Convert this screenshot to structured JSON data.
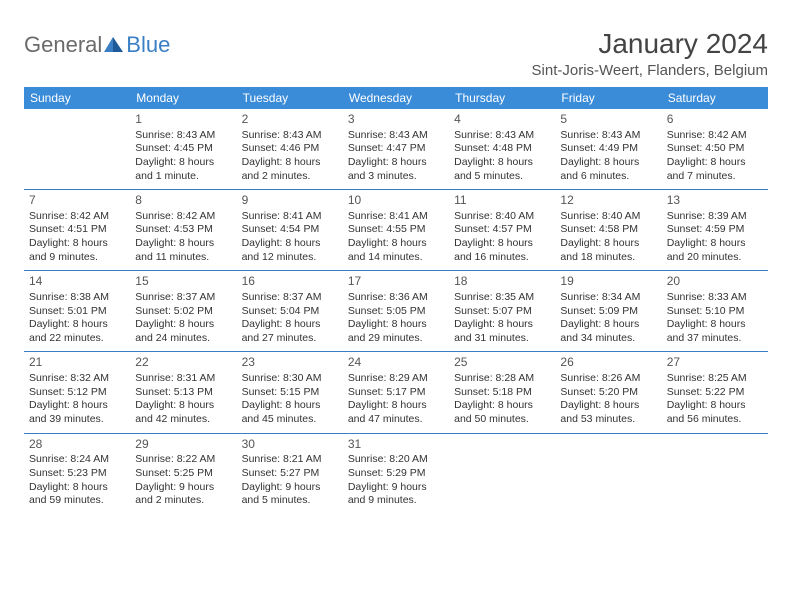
{
  "logo": {
    "text1": "General",
    "text2": "Blue"
  },
  "title": "January 2024",
  "location": "Sint-Joris-Weert, Flanders, Belgium",
  "colors": {
    "header_bg": "#3a8bd8",
    "header_text": "#ffffff",
    "week_border": "#3a7fc4",
    "body_text": "#333333",
    "logo_gray": "#6b6b6b",
    "logo_blue": "#3a7fc4",
    "page_bg": "#ffffff"
  },
  "weekdays": [
    "Sunday",
    "Monday",
    "Tuesday",
    "Wednesday",
    "Thursday",
    "Friday",
    "Saturday"
  ],
  "weeks": [
    [
      {
        "num": "",
        "lines": [
          "",
          "",
          "",
          ""
        ]
      },
      {
        "num": "1",
        "lines": [
          "Sunrise: 8:43 AM",
          "Sunset: 4:45 PM",
          "Daylight: 8 hours",
          "and 1 minute."
        ]
      },
      {
        "num": "2",
        "lines": [
          "Sunrise: 8:43 AM",
          "Sunset: 4:46 PM",
          "Daylight: 8 hours",
          "and 2 minutes."
        ]
      },
      {
        "num": "3",
        "lines": [
          "Sunrise: 8:43 AM",
          "Sunset: 4:47 PM",
          "Daylight: 8 hours",
          "and 3 minutes."
        ]
      },
      {
        "num": "4",
        "lines": [
          "Sunrise: 8:43 AM",
          "Sunset: 4:48 PM",
          "Daylight: 8 hours",
          "and 5 minutes."
        ]
      },
      {
        "num": "5",
        "lines": [
          "Sunrise: 8:43 AM",
          "Sunset: 4:49 PM",
          "Daylight: 8 hours",
          "and 6 minutes."
        ]
      },
      {
        "num": "6",
        "lines": [
          "Sunrise: 8:42 AM",
          "Sunset: 4:50 PM",
          "Daylight: 8 hours",
          "and 7 minutes."
        ]
      }
    ],
    [
      {
        "num": "7",
        "lines": [
          "Sunrise: 8:42 AM",
          "Sunset: 4:51 PM",
          "Daylight: 8 hours",
          "and 9 minutes."
        ]
      },
      {
        "num": "8",
        "lines": [
          "Sunrise: 8:42 AM",
          "Sunset: 4:53 PM",
          "Daylight: 8 hours",
          "and 11 minutes."
        ]
      },
      {
        "num": "9",
        "lines": [
          "Sunrise: 8:41 AM",
          "Sunset: 4:54 PM",
          "Daylight: 8 hours",
          "and 12 minutes."
        ]
      },
      {
        "num": "10",
        "lines": [
          "Sunrise: 8:41 AM",
          "Sunset: 4:55 PM",
          "Daylight: 8 hours",
          "and 14 minutes."
        ]
      },
      {
        "num": "11",
        "lines": [
          "Sunrise: 8:40 AM",
          "Sunset: 4:57 PM",
          "Daylight: 8 hours",
          "and 16 minutes."
        ]
      },
      {
        "num": "12",
        "lines": [
          "Sunrise: 8:40 AM",
          "Sunset: 4:58 PM",
          "Daylight: 8 hours",
          "and 18 minutes."
        ]
      },
      {
        "num": "13",
        "lines": [
          "Sunrise: 8:39 AM",
          "Sunset: 4:59 PM",
          "Daylight: 8 hours",
          "and 20 minutes."
        ]
      }
    ],
    [
      {
        "num": "14",
        "lines": [
          "Sunrise: 8:38 AM",
          "Sunset: 5:01 PM",
          "Daylight: 8 hours",
          "and 22 minutes."
        ]
      },
      {
        "num": "15",
        "lines": [
          "Sunrise: 8:37 AM",
          "Sunset: 5:02 PM",
          "Daylight: 8 hours",
          "and 24 minutes."
        ]
      },
      {
        "num": "16",
        "lines": [
          "Sunrise: 8:37 AM",
          "Sunset: 5:04 PM",
          "Daylight: 8 hours",
          "and 27 minutes."
        ]
      },
      {
        "num": "17",
        "lines": [
          "Sunrise: 8:36 AM",
          "Sunset: 5:05 PM",
          "Daylight: 8 hours",
          "and 29 minutes."
        ]
      },
      {
        "num": "18",
        "lines": [
          "Sunrise: 8:35 AM",
          "Sunset: 5:07 PM",
          "Daylight: 8 hours",
          "and 31 minutes."
        ]
      },
      {
        "num": "19",
        "lines": [
          "Sunrise: 8:34 AM",
          "Sunset: 5:09 PM",
          "Daylight: 8 hours",
          "and 34 minutes."
        ]
      },
      {
        "num": "20",
        "lines": [
          "Sunrise: 8:33 AM",
          "Sunset: 5:10 PM",
          "Daylight: 8 hours",
          "and 37 minutes."
        ]
      }
    ],
    [
      {
        "num": "21",
        "lines": [
          "Sunrise: 8:32 AM",
          "Sunset: 5:12 PM",
          "Daylight: 8 hours",
          "and 39 minutes."
        ]
      },
      {
        "num": "22",
        "lines": [
          "Sunrise: 8:31 AM",
          "Sunset: 5:13 PM",
          "Daylight: 8 hours",
          "and 42 minutes."
        ]
      },
      {
        "num": "23",
        "lines": [
          "Sunrise: 8:30 AM",
          "Sunset: 5:15 PM",
          "Daylight: 8 hours",
          "and 45 minutes."
        ]
      },
      {
        "num": "24",
        "lines": [
          "Sunrise: 8:29 AM",
          "Sunset: 5:17 PM",
          "Daylight: 8 hours",
          "and 47 minutes."
        ]
      },
      {
        "num": "25",
        "lines": [
          "Sunrise: 8:28 AM",
          "Sunset: 5:18 PM",
          "Daylight: 8 hours",
          "and 50 minutes."
        ]
      },
      {
        "num": "26",
        "lines": [
          "Sunrise: 8:26 AM",
          "Sunset: 5:20 PM",
          "Daylight: 8 hours",
          "and 53 minutes."
        ]
      },
      {
        "num": "27",
        "lines": [
          "Sunrise: 8:25 AM",
          "Sunset: 5:22 PM",
          "Daylight: 8 hours",
          "and 56 minutes."
        ]
      }
    ],
    [
      {
        "num": "28",
        "lines": [
          "Sunrise: 8:24 AM",
          "Sunset: 5:23 PM",
          "Daylight: 8 hours",
          "and 59 minutes."
        ]
      },
      {
        "num": "29",
        "lines": [
          "Sunrise: 8:22 AM",
          "Sunset: 5:25 PM",
          "Daylight: 9 hours",
          "and 2 minutes."
        ]
      },
      {
        "num": "30",
        "lines": [
          "Sunrise: 8:21 AM",
          "Sunset: 5:27 PM",
          "Daylight: 9 hours",
          "and 5 minutes."
        ]
      },
      {
        "num": "31",
        "lines": [
          "Sunrise: 8:20 AM",
          "Sunset: 5:29 PM",
          "Daylight: 9 hours",
          "and 9 minutes."
        ]
      },
      {
        "num": "",
        "lines": [
          "",
          "",
          "",
          ""
        ]
      },
      {
        "num": "",
        "lines": [
          "",
          "",
          "",
          ""
        ]
      },
      {
        "num": "",
        "lines": [
          "",
          "",
          "",
          ""
        ]
      }
    ]
  ]
}
